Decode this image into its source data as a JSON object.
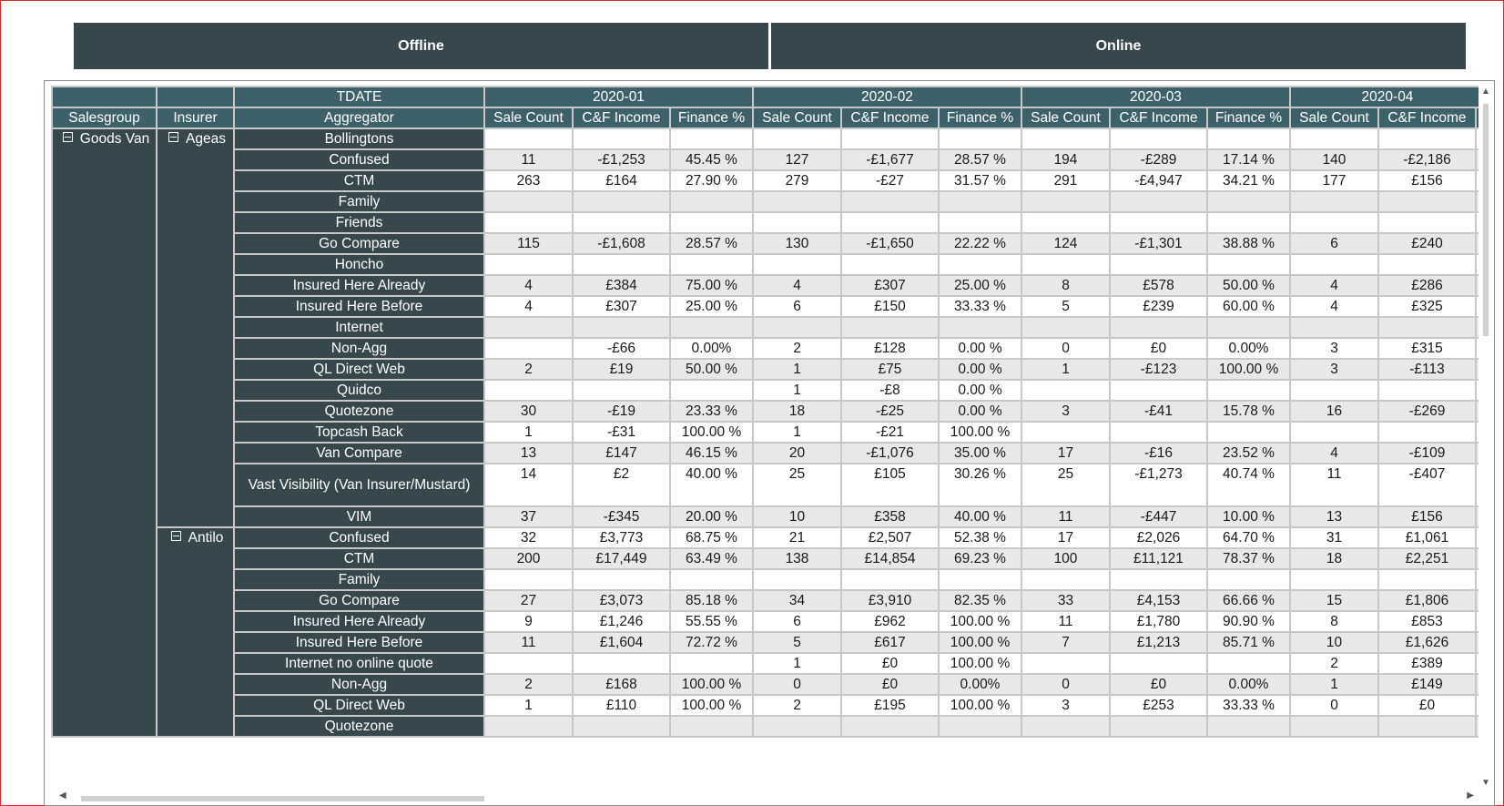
{
  "tabs": {
    "offline": "Offline",
    "online": "Online"
  },
  "header": {
    "tdate": "TDATE",
    "salesgroup": "Salesgroup",
    "insurer": "Insurer",
    "aggregator": "Aggregator",
    "periods": [
      "2020-01",
      "2020-02",
      "2020-03",
      "2020-04"
    ],
    "measures": [
      "Sale Count",
      "C&F Income",
      "Finance %"
    ]
  },
  "salesgroup": "Goods Van",
  "insurers": [
    {
      "name": "Ageas",
      "rows": [
        {
          "agg": "Bollingtons",
          "v": [
            "",
            "",
            "",
            "",
            "",
            "",
            "",
            "",
            "",
            "",
            ""
          ]
        },
        {
          "agg": "Confused",
          "v": [
            "11",
            "-£1,253",
            "45.45 %",
            "127",
            "-£1,677",
            "28.57 %",
            "194",
            "-£289",
            "17.14 %",
            "140",
            "-£2,186"
          ]
        },
        {
          "agg": "CTM",
          "v": [
            "263",
            "£164",
            "27.90 %",
            "279",
            "-£27",
            "31.57 %",
            "291",
            "-£4,947",
            "34.21 %",
            "177",
            "£156"
          ]
        },
        {
          "agg": "Family",
          "v": [
            "",
            "",
            "",
            "",
            "",
            "",
            "",
            "",
            "",
            "",
            ""
          ]
        },
        {
          "agg": "Friends",
          "v": [
            "",
            "",
            "",
            "",
            "",
            "",
            "",
            "",
            "",
            "",
            ""
          ]
        },
        {
          "agg": "Go Compare",
          "v": [
            "115",
            "-£1,608",
            "28.57 %",
            "130",
            "-£1,650",
            "22.22 %",
            "124",
            "-£1,301",
            "38.88 %",
            "6",
            "£240"
          ]
        },
        {
          "agg": "Honcho",
          "v": [
            "",
            "",
            "",
            "",
            "",
            "",
            "",
            "",
            "",
            "",
            ""
          ]
        },
        {
          "agg": "Insured Here Already",
          "v": [
            "4",
            "£384",
            "75.00 %",
            "4",
            "£307",
            "25.00 %",
            "8",
            "£578",
            "50.00 %",
            "4",
            "£286"
          ]
        },
        {
          "agg": "Insured Here Before",
          "v": [
            "4",
            "£307",
            "25.00 %",
            "6",
            "£150",
            "33.33 %",
            "5",
            "£239",
            "60.00 %",
            "4",
            "£325"
          ]
        },
        {
          "agg": "Internet",
          "v": [
            "",
            "",
            "",
            "",
            "",
            "",
            "",
            "",
            "",
            "",
            ""
          ]
        },
        {
          "agg": "Non-Agg",
          "v": [
            "",
            "-£66",
            "0.00%",
            "2",
            "£128",
            "0.00 %",
            "0",
            "£0",
            "0.00%",
            "3",
            "£315"
          ]
        },
        {
          "agg": "QL Direct Web",
          "v": [
            "2",
            "£19",
            "50.00 %",
            "1",
            "£75",
            "0.00 %",
            "1",
            "-£123",
            "100.00 %",
            "3",
            "-£113"
          ]
        },
        {
          "agg": "Quidco",
          "v": [
            "",
            "",
            "",
            "1",
            "-£8",
            "0.00 %",
            "",
            "",
            "",
            "",
            ""
          ]
        },
        {
          "agg": "Quotezone",
          "v": [
            "30",
            "-£19",
            "23.33 %",
            "18",
            "-£25",
            "0.00 %",
            "3",
            "-£41",
            "15.78 %",
            "16",
            "-£269"
          ]
        },
        {
          "agg": "Topcash Back",
          "v": [
            "1",
            "-£31",
            "100.00 %",
            "1",
            "-£21",
            "100.00 %",
            "",
            "",
            "",
            "",
            ""
          ]
        },
        {
          "agg": "Van Compare",
          "v": [
            "13",
            "£147",
            "46.15 %",
            "20",
            "-£1,076",
            "35.00 %",
            "17",
            "-£16",
            "23.52 %",
            "4",
            "-£109"
          ]
        },
        {
          "agg": "Vast Visibility (Van Insurer/Mustard)",
          "v": [
            "14",
            "£2",
            "40.00 %",
            "25",
            "£105",
            "30.26 %",
            "25",
            "-£1,273",
            "40.74 %",
            "11",
            "-£407"
          ],
          "tall": true
        },
        {
          "agg": "VIM",
          "v": [
            "37",
            "-£345",
            "20.00 %",
            "10",
            "£358",
            "40.00 %",
            "11",
            "-£447",
            "10.00 %",
            "13",
            "£156"
          ]
        }
      ]
    },
    {
      "name": "Antilo",
      "rows": [
        {
          "agg": "Confused",
          "v": [
            "32",
            "£3,773",
            "68.75 %",
            "21",
            "£2,507",
            "52.38 %",
            "17",
            "£2,026",
            "64.70 %",
            "31",
            "£1,061"
          ]
        },
        {
          "agg": "CTM",
          "v": [
            "200",
            "£17,449",
            "63.49 %",
            "138",
            "£14,854",
            "69.23 %",
            "100",
            "£11,121",
            "78.37 %",
            "18",
            "£2,251"
          ]
        },
        {
          "agg": "Family",
          "v": [
            "",
            "",
            "",
            "",
            "",
            "",
            "",
            "",
            "",
            "",
            ""
          ]
        },
        {
          "agg": "Go Compare",
          "v": [
            "27",
            "£3,073",
            "85.18 %",
            "34",
            "£3,910",
            "82.35 %",
            "33",
            "£4,153",
            "66.66 %",
            "15",
            "£1,806"
          ]
        },
        {
          "agg": "Insured Here Already",
          "v": [
            "9",
            "£1,246",
            "55.55 %",
            "6",
            "£962",
            "100.00 %",
            "11",
            "£1,780",
            "90.90 %",
            "8",
            "£853"
          ]
        },
        {
          "agg": "Insured Here Before",
          "v": [
            "11",
            "£1,604",
            "72.72 %",
            "5",
            "£617",
            "100.00 %",
            "7",
            "£1,213",
            "85.71 %",
            "10",
            "£1,626"
          ]
        },
        {
          "agg": "Internet no online quote",
          "v": [
            "",
            "",
            "",
            "1",
            "£0",
            "100.00 %",
            "",
            "",
            "",
            "2",
            "£389"
          ]
        },
        {
          "agg": "Non-Agg",
          "v": [
            "2",
            "£168",
            "100.00 %",
            "0",
            "£0",
            "0.00%",
            "0",
            "£0",
            "0.00%",
            "1",
            "£149"
          ]
        },
        {
          "agg": "QL Direct Web",
          "v": [
            "1",
            "£110",
            "100.00 %",
            "2",
            "£195",
            "100.00 %",
            "3",
            "£253",
            "33.33 %",
            "0",
            "£0"
          ]
        },
        {
          "agg": "Quotezone",
          "v": [
            "",
            "",
            "",
            "",
            "",
            "",
            "",
            "",
            "",
            "",
            ""
          ]
        }
      ]
    }
  ]
}
